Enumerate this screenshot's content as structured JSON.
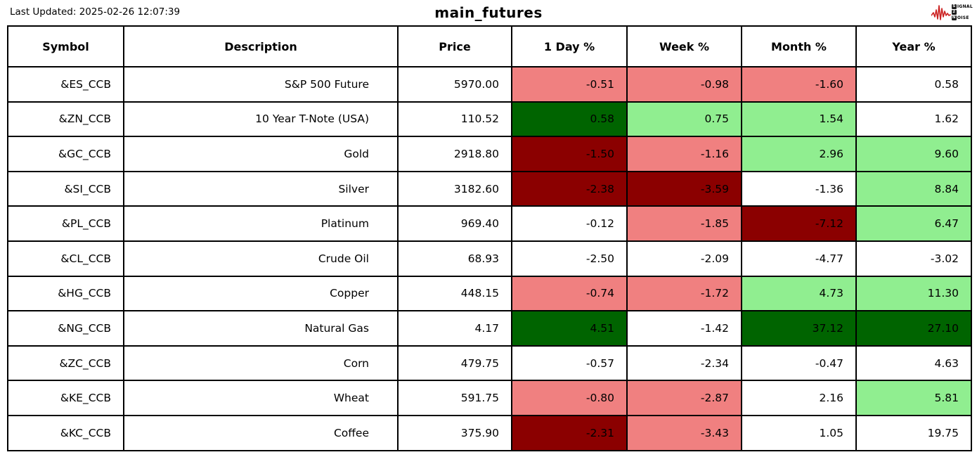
{
  "header": {
    "last_updated": "Last Updated: 2025-02-26 12:07:39",
    "title": "main_futures"
  },
  "logo": {
    "line1_boxed": "S",
    "line1_rest": "IGNAL",
    "line2_boxed": "2",
    "line3_boxed": "N",
    "line3_rest": "OISE",
    "waveform_color": "#cc2222"
  },
  "colors": {
    "strong_negative": "#8b0000",
    "mild_negative": "#f08080",
    "neutral": "#ffffff",
    "mild_positive": "#90ee90",
    "strong_positive": "#006400",
    "border": "#000000"
  },
  "table": {
    "columns": [
      "Symbol",
      "Description",
      "Price",
      "1 Day %",
      "Week %",
      "Month %",
      "Year %"
    ],
    "rows": [
      {
        "symbol": "&ES_CCB",
        "description": "S&P 500 Future",
        "price": "5970.00",
        "percents": [
          {
            "value": "-0.51",
            "bg": "#f08080"
          },
          {
            "value": "-0.98",
            "bg": "#f08080"
          },
          {
            "value": "-1.60",
            "bg": "#f08080"
          },
          {
            "value": "0.58",
            "bg": "#ffffff"
          }
        ]
      },
      {
        "symbol": "&ZN_CCB",
        "description": "10 Year T-Note (USA)",
        "price": "110.52",
        "percents": [
          {
            "value": "0.58",
            "bg": "#006400"
          },
          {
            "value": "0.75",
            "bg": "#90ee90"
          },
          {
            "value": "1.54",
            "bg": "#90ee90"
          },
          {
            "value": "1.62",
            "bg": "#ffffff"
          }
        ]
      },
      {
        "symbol": "&GC_CCB",
        "description": "Gold",
        "price": "2918.80",
        "percents": [
          {
            "value": "-1.50",
            "bg": "#8b0000"
          },
          {
            "value": "-1.16",
            "bg": "#f08080"
          },
          {
            "value": "2.96",
            "bg": "#90ee90"
          },
          {
            "value": "9.60",
            "bg": "#90ee90"
          }
        ]
      },
      {
        "symbol": "&SI_CCB",
        "description": "Silver",
        "price": "3182.60",
        "percents": [
          {
            "value": "-2.38",
            "bg": "#8b0000"
          },
          {
            "value": "-3.59",
            "bg": "#8b0000"
          },
          {
            "value": "-1.36",
            "bg": "#ffffff"
          },
          {
            "value": "8.84",
            "bg": "#90ee90"
          }
        ]
      },
      {
        "symbol": "&PL_CCB",
        "description": "Platinum",
        "price": "969.40",
        "percents": [
          {
            "value": "-0.12",
            "bg": "#ffffff"
          },
          {
            "value": "-1.85",
            "bg": "#f08080"
          },
          {
            "value": "-7.12",
            "bg": "#8b0000"
          },
          {
            "value": "6.47",
            "bg": "#90ee90"
          }
        ]
      },
      {
        "symbol": "&CL_CCB",
        "description": "Crude Oil",
        "price": "68.93",
        "percents": [
          {
            "value": "-2.50",
            "bg": "#ffffff"
          },
          {
            "value": "-2.09",
            "bg": "#ffffff"
          },
          {
            "value": "-4.77",
            "bg": "#ffffff"
          },
          {
            "value": "-3.02",
            "bg": "#ffffff"
          }
        ]
      },
      {
        "symbol": "&HG_CCB",
        "description": "Copper",
        "price": "448.15",
        "percents": [
          {
            "value": "-0.74",
            "bg": "#f08080"
          },
          {
            "value": "-1.72",
            "bg": "#f08080"
          },
          {
            "value": "4.73",
            "bg": "#90ee90"
          },
          {
            "value": "11.30",
            "bg": "#90ee90"
          }
        ]
      },
      {
        "symbol": "&NG_CCB",
        "description": "Natural Gas",
        "price": "4.17",
        "percents": [
          {
            "value": "4.51",
            "bg": "#006400"
          },
          {
            "value": "-1.42",
            "bg": "#ffffff"
          },
          {
            "value": "37.12",
            "bg": "#006400"
          },
          {
            "value": "27.10",
            "bg": "#006400"
          }
        ]
      },
      {
        "symbol": "&ZC_CCB",
        "description": "Corn",
        "price": "479.75",
        "percents": [
          {
            "value": "-0.57",
            "bg": "#ffffff"
          },
          {
            "value": "-2.34",
            "bg": "#ffffff"
          },
          {
            "value": "-0.47",
            "bg": "#ffffff"
          },
          {
            "value": "4.63",
            "bg": "#ffffff"
          }
        ]
      },
      {
        "symbol": "&KE_CCB",
        "description": "Wheat",
        "price": "591.75",
        "percents": [
          {
            "value": "-0.80",
            "bg": "#f08080"
          },
          {
            "value": "-2.87",
            "bg": "#f08080"
          },
          {
            "value": "2.16",
            "bg": "#ffffff"
          },
          {
            "value": "5.81",
            "bg": "#90ee90"
          }
        ]
      },
      {
        "symbol": "&KC_CCB",
        "description": "Coffee",
        "price": "375.90",
        "percents": [
          {
            "value": "-2.31",
            "bg": "#8b0000"
          },
          {
            "value": "-3.43",
            "bg": "#f08080"
          },
          {
            "value": "1.05",
            "bg": "#ffffff"
          },
          {
            "value": "19.75",
            "bg": "#ffffff"
          }
        ]
      }
    ]
  },
  "chart_data": {
    "type": "table",
    "title": "main_futures",
    "columns": [
      "Symbol",
      "Description",
      "Price",
      "1 Day %",
      "Week %",
      "Month %",
      "Year %"
    ],
    "rows": [
      [
        "&ES_CCB",
        "S&P 500 Future",
        5970.0,
        -0.51,
        -0.98,
        -1.6,
        0.58
      ],
      [
        "&ZN_CCB",
        "10 Year T-Note (USA)",
        110.52,
        0.58,
        0.75,
        1.54,
        1.62
      ],
      [
        "&GC_CCB",
        "Gold",
        2918.8,
        -1.5,
        -1.16,
        2.96,
        9.6
      ],
      [
        "&SI_CCB",
        "Silver",
        3182.6,
        -2.38,
        -3.59,
        -1.36,
        8.84
      ],
      [
        "&PL_CCB",
        "Platinum",
        969.4,
        -0.12,
        -1.85,
        -7.12,
        6.47
      ],
      [
        "&CL_CCB",
        "Crude Oil",
        68.93,
        -2.5,
        -2.09,
        -4.77,
        -3.02
      ],
      [
        "&HG_CCB",
        "Copper",
        448.15,
        -0.74,
        -1.72,
        4.73,
        11.3
      ],
      [
        "&NG_CCB",
        "Natural Gas",
        4.17,
        4.51,
        -1.42,
        37.12,
        27.1
      ],
      [
        "&ZC_CCB",
        "Corn",
        479.75,
        -0.57,
        -2.34,
        -0.47,
        4.63
      ],
      [
        "&KE_CCB",
        "Wheat",
        591.75,
        -0.8,
        -2.87,
        2.16,
        5.81
      ],
      [
        "&KC_CCB",
        "Coffee",
        375.9,
        -2.31,
        -3.43,
        1.05,
        19.75
      ]
    ],
    "cell_color_legend": "dark red = strong loss, light coral = mild loss, white = neutral, light green = mild gain, dark green = strong gain"
  }
}
